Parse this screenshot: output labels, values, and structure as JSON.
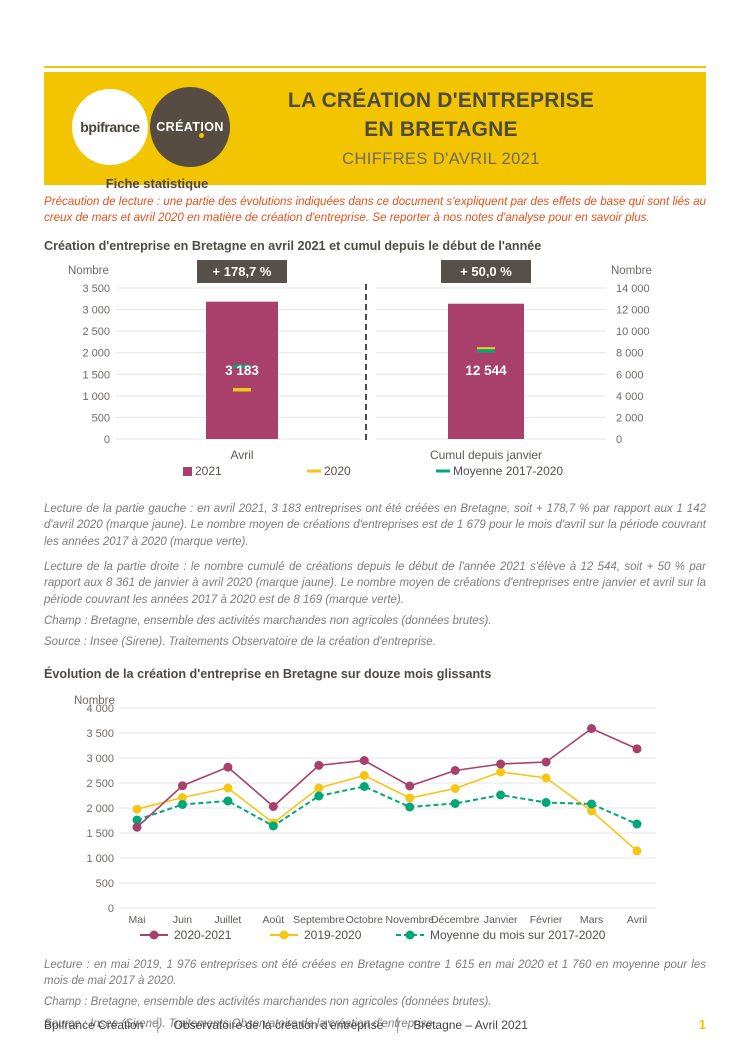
{
  "header": {
    "logo_bpifrance": "bpifrance",
    "logo_creation": "CRÉATION",
    "fiche_label": "Fiche statistique",
    "title_line1": "LA CRÉATION D'ENTREPRISE",
    "title_line2": "EN BRETAGNE",
    "subtitle": "CHIFFRES D'AVRIL 2021"
  },
  "precaution": "Précaution de lecture : une partie des évolutions indiquées dans ce document s'expliquent par des effets de base qui sont liés au creux de mars et avril 2020 en matière de création d'entreprise. Se reporter à nos notes d'analyse pour en savoir plus.",
  "section1": {
    "title": "Création d'entreprise en Bretagne en avril 2021 et cumul depuis le début de l'année",
    "legend": [
      {
        "label": "2021",
        "swatch": "square",
        "color_key": "magenta"
      },
      {
        "label": "2020",
        "swatch": "dash",
        "color_key": "yellow"
      },
      {
        "label": "Moyenne 2017-2020",
        "swatch": "dash",
        "color_key": "green"
      }
    ],
    "lecture_left": "Lecture de la partie gauche : en avril 2021, 3 183 entreprises ont été créées en Bretagne, soit + 178,7 % par rapport aux 1 142 d'avril 2020 (marque jaune). Le nombre moyen de créations d'entreprises est de 1 679 pour le mois d'avril sur la période couvrant les années 2017 à 2020 (marque verte).",
    "lecture_right": "Lecture de la partie droite : le nombre cumulé de créations depuis le début de l'année 2021 s'élève à 12 544, soit + 50 % par rapport aux 8 361 de janvier à avril 2020 (marque jaune). Le nombre moyen de créations d'entreprises entre janvier et avril sur la période couvrant les années 2017 à 2020 est de 8 169 (marque verte).",
    "champ": "Champ : Bretagne, ensemble des activités marchandes non agricoles (données brutes).",
    "source": "Source : Insee (Sirene). Traitements Observatoire de la création d'entreprise."
  },
  "section2": {
    "title": "Évolution de la création d'entreprise en Bretagne sur douze mois glissants",
    "lecture": "Lecture : en mai 2019, 1 976 entreprises ont été créées en Bretagne contre 1 615 en mai 2020 et 1 760 en moyenne pour les mois de mai 2017 à 2020.",
    "champ": "Champ : Bretagne, ensemble des activités marchandes non agricoles (données brutes).",
    "source": "Source : Insee (Sirene). Traitements Observatoire de la création d'entreprise."
  },
  "footer": {
    "item1": "Bpifrance Création",
    "item2": "Observatoire de la création d'entreprise",
    "item3": "Bretagne – Avril 2021",
    "separator": "│",
    "page_number": "1"
  },
  "colors": {
    "brand_yellow": "#F2C500",
    "badge": "#57504A",
    "magenta": "#A93F6B",
    "yellow": "#F7C516",
    "green": "#00A878",
    "grid": "#E4E4E4",
    "accent_red": "#E8501A"
  },
  "chart_data": [
    {
      "id": "bar-avril",
      "type": "bar",
      "badge": "+ 178,7 %",
      "categories": [
        "Avril"
      ],
      "values": [
        3183
      ],
      "value_labels": [
        "3 183"
      ],
      "marks": [
        {
          "label": "Moyenne 2017-2020",
          "value": 1679,
          "color_key": "green"
        },
        {
          "label": "2020",
          "value": 1142,
          "color_key": "yellow"
        }
      ],
      "ylabel": "Nombre",
      "ylim": [
        0,
        3500
      ],
      "ytick_step": 500,
      "grid": true
    },
    {
      "id": "bar-cumul",
      "type": "bar",
      "badge": "+ 50,0 %",
      "categories": [
        "Cumul depuis janvier"
      ],
      "values": [
        12544
      ],
      "value_labels": [
        "12 544"
      ],
      "marks": [
        {
          "label": "2020",
          "value": 8361,
          "color_key": "yellow"
        },
        {
          "label": "Moyenne 2017-2020",
          "value": 8169,
          "color_key": "green"
        }
      ],
      "ylabel": "Nombre",
      "ylim": [
        0,
        14000
      ],
      "ytick_step": 2000,
      "grid": true
    },
    {
      "id": "line-douze-mois",
      "type": "line",
      "categories": [
        "Mai",
        "Juin",
        "Juillet",
        "Août",
        "Septembre",
        "Octobre",
        "Novembre",
        "Décembre",
        "Janvier",
        "Février",
        "Mars",
        "Avril"
      ],
      "series": [
        {
          "name": "2020-2021",
          "color_key": "magenta",
          "style": "solid",
          "values": [
            1615,
            2446,
            2817,
            2030,
            2853,
            2950,
            2440,
            2750,
            2880,
            2920,
            3590,
            3183
          ]
        },
        {
          "name": "2019-2020",
          "color_key": "yellow",
          "style": "solid",
          "values": [
            1976,
            2210,
            2400,
            1700,
            2400,
            2650,
            2200,
            2390,
            2720,
            2600,
            1940,
            1142
          ]
        },
        {
          "name": "Moyenne du mois sur 2017-2020",
          "color_key": "green",
          "style": "dashed",
          "values": [
            1760,
            2070,
            2140,
            1640,
            2240,
            2430,
            2020,
            2090,
            2260,
            2110,
            2080,
            1679
          ]
        }
      ],
      "ylabel": "Nombre",
      "ylim": [
        0,
        4000
      ],
      "ytick_step": 500,
      "grid": true,
      "legend_position": "bottom"
    }
  ]
}
